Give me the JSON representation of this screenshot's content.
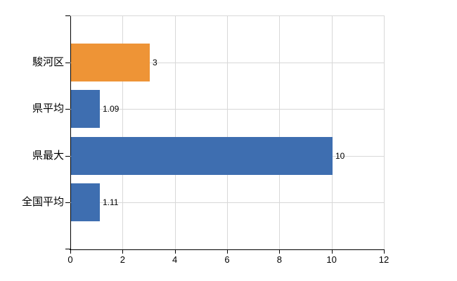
{
  "chart_data": {
    "type": "bar",
    "orientation": "horizontal",
    "categories": [
      "駿河区",
      "県平均",
      "県最大",
      "全国平均"
    ],
    "values": [
      3,
      1.09,
      10,
      1.11
    ],
    "value_labels": [
      "3",
      "1.09",
      "10",
      "1.11"
    ],
    "bar_colors": [
      "#ee9436",
      "#3e6eb0",
      "#3e6eb0",
      "#3e6eb0"
    ],
    "xlim": [
      0,
      12
    ],
    "xticks": [
      0,
      2,
      4,
      6,
      8,
      10,
      12
    ],
    "grid": true,
    "legend": false,
    "title": "",
    "xlabel": "",
    "ylabel": ""
  },
  "colors": {
    "accent_orange": "#ee9436",
    "accent_blue": "#3e6eb0",
    "gridline": "#d8d8d8",
    "axis": "#000000",
    "background": "#ffffff",
    "text": "#000000"
  }
}
